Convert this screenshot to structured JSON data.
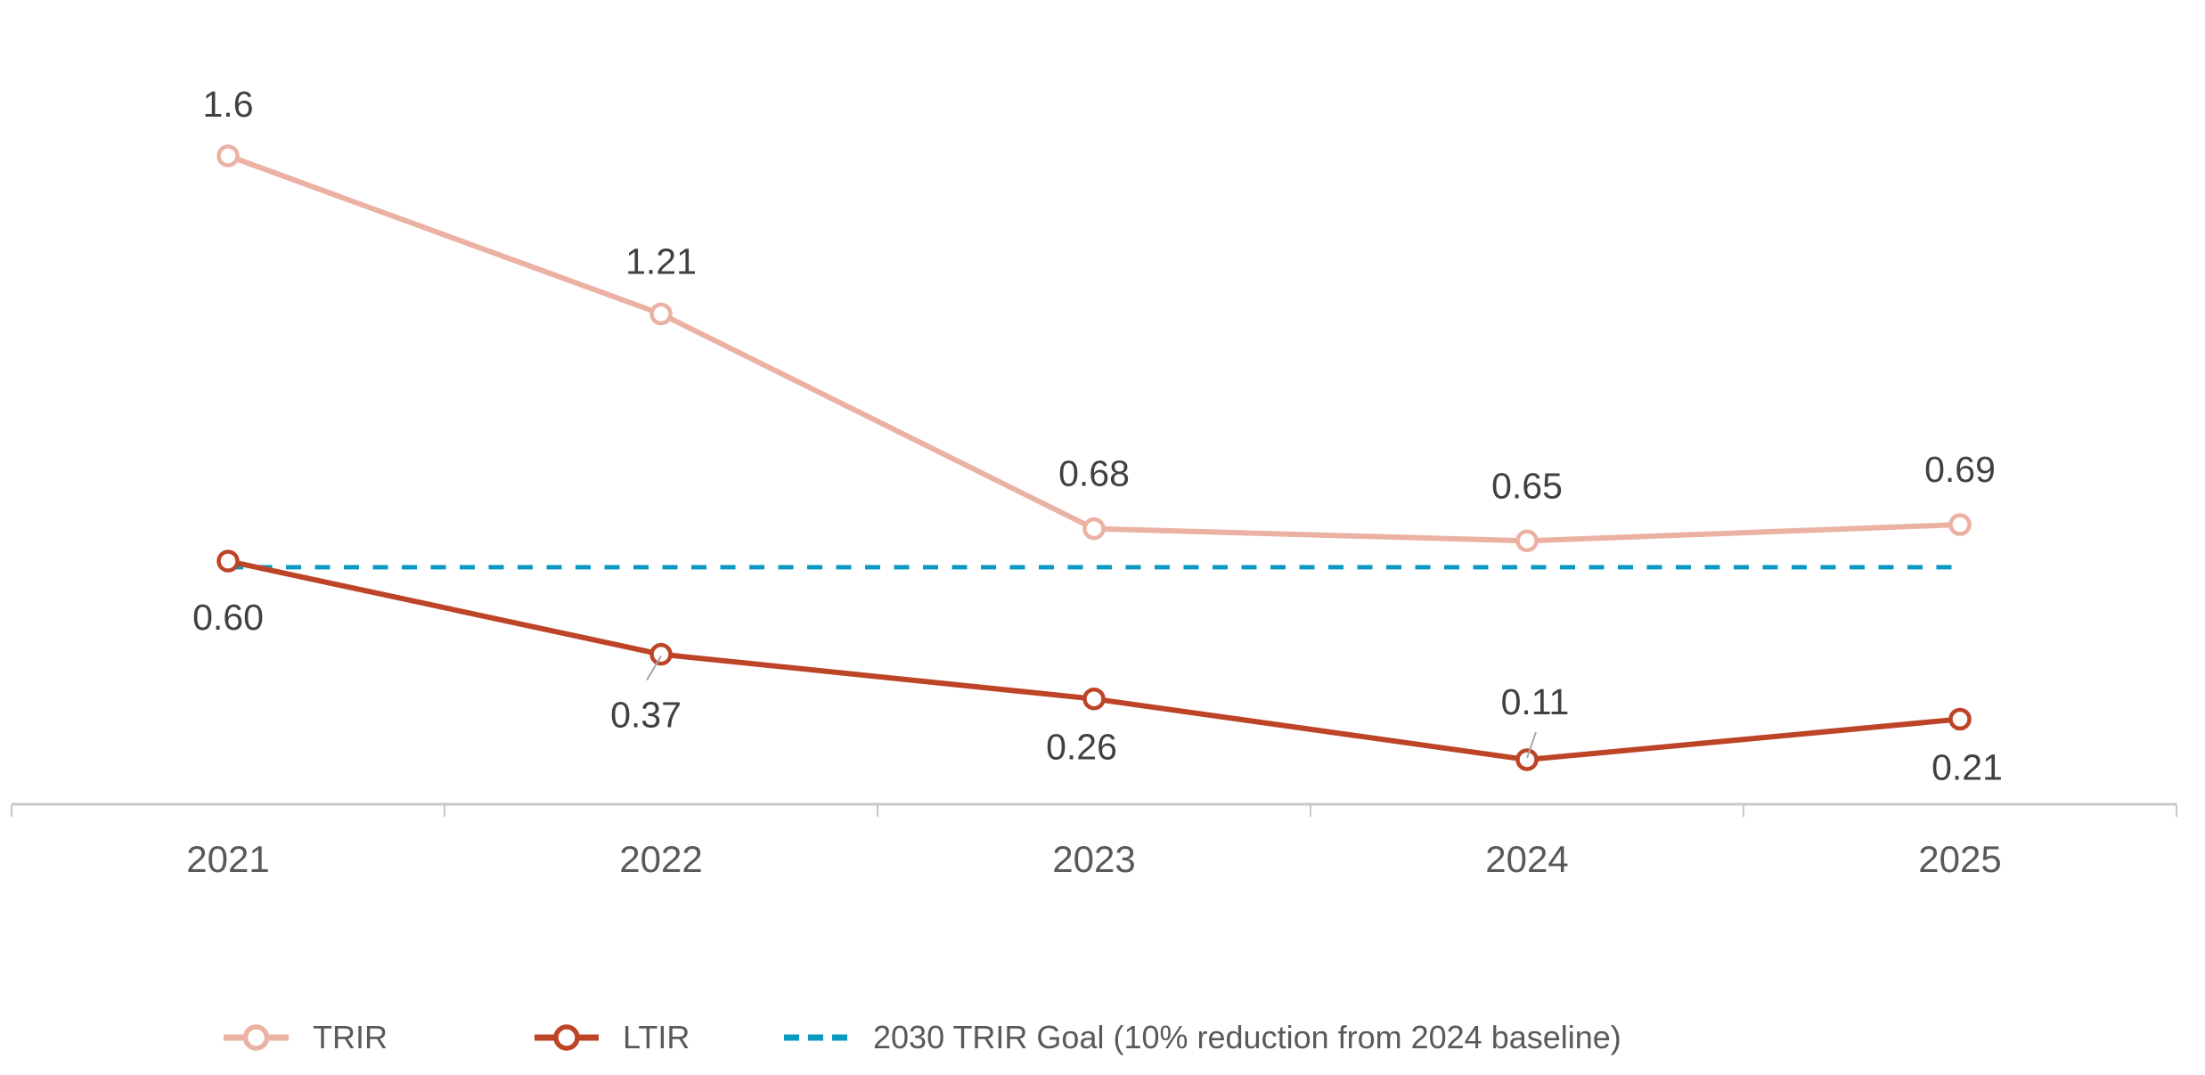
{
  "chart_data": {
    "type": "line",
    "title": "",
    "xlabel": "",
    "ylabel": "",
    "categories": [
      "2021",
      "2022",
      "2023",
      "2024",
      "2025"
    ],
    "ylim": [
      0,
      1.7
    ],
    "grid": false,
    "y_axis_visible": false,
    "series": [
      {
        "name": "TRIR",
        "color": "#EBB1A3",
        "marker": "open-circle",
        "values": [
          1.6,
          1.21,
          0.68,
          0.65,
          0.69
        ],
        "labels": [
          "1.6",
          "1.21",
          "0.68",
          "0.65",
          "0.69"
        ],
        "label_position": [
          "above",
          "above",
          "above",
          "above",
          "above"
        ]
      },
      {
        "name": "LTIR",
        "color": "#BD4427",
        "marker": "open-circle",
        "values": [
          0.6,
          0.37,
          0.26,
          0.11,
          0.21
        ],
        "labels": [
          "0.60",
          "0.37",
          "0.26",
          "0.11",
          "0.21"
        ],
        "label_position": [
          "below",
          "below-left-leader",
          "below",
          "above-leader",
          "below"
        ]
      }
    ],
    "reference_lines": [
      {
        "name": "2030 TRIR Goal (10% reduction from 2024 baseline)",
        "color": "#0A99C2",
        "style": "dashed",
        "value": 0.585,
        "from_category": "2021",
        "to_category": "2025"
      }
    ],
    "legend": {
      "placement": "bottom-left",
      "entries": [
        {
          "label": "TRIR",
          "color": "#EBB1A3",
          "symbol": "line-open-circle"
        },
        {
          "label": "LTIR",
          "color": "#BD4427",
          "symbol": "line-open-circle"
        },
        {
          "label": "2030 TRIR Goal (10% reduction from 2024 baseline)",
          "color": "#0A99C2",
          "symbol": "dashed-line"
        }
      ]
    },
    "colors": {
      "axis": "#C8C8C8",
      "data_label": "#404040",
      "tick_label": "#595959",
      "leader_line": "#A6A6A6"
    }
  }
}
